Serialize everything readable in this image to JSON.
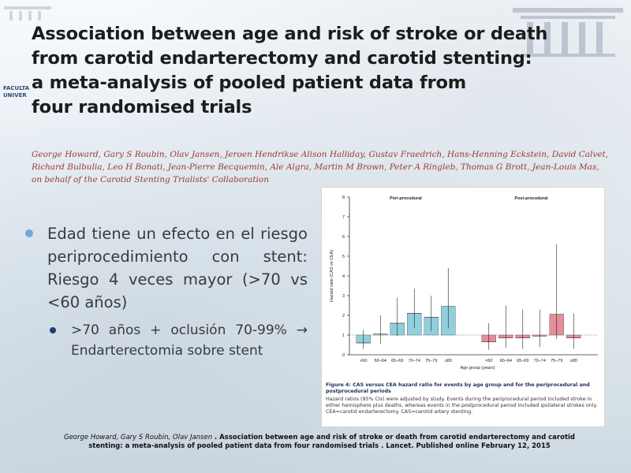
{
  "slide": {
    "faculty_label": [
      "FACULTA",
      "UNIVER"
    ],
    "title_lines": [
      "Association between age and risk of stroke or death",
      "from carotid endarterectomy and carotid stenting:",
      "a meta-analysis of pooled patient data from",
      "four randomised trials"
    ],
    "author_lines": [
      "George Howard, Gary S Roubin, Olav Jansen, Jeroen Hendrikse Alison Halliday, Gustav Fraedrich, Hans-Henning Eckstein, David Calvet,",
      "Richard Bulbulia, Leo H Bonati, Jean-Pierre Becquemin, Ale Algra, Martin M Brown, Peter A Ringleb, Thomas G Brott, Jean-Louis Mas,",
      "on behalf of the Carotid Stenting Trialists' Collaboration"
    ],
    "bullet_main": "Edad tiene un efecto en el riesgo periprocedimiento con stent: Riesgo 4 veces mayor (>70 vs <60 años)",
    "bullet_sub": ">70 años + oclusión 70-99% → Endarterectomia sobre stent",
    "footer_authors": "George Howard, Gary S Roubin, Olav Jansen",
    "footer_title": ". Association between age and risk of stroke or death from carotid endarterectomy and carotid stenting: a meta-analysis of pooled patient data from four randomised trials . Lancet. Published online February 12, 2015",
    "caption_title": "Figure 4: CAS versus CEA hazard ratio for events by age group and for the periprocedural and postprocedural periods",
    "caption_body": "Hazard ratios (95% CIs) were adjusted by study. Events during the periprocedural period included stroke in either hemisphere plus deaths, whereas events in the postprocedural period included ipsilateral strokes only. CEA=carotid endarterectomy. CAS=carotid artery stenting."
  },
  "colors": {
    "peri": "#8fd0dc",
    "post": "#e48e98",
    "title": "#1c1c1c",
    "authors": "#9b3a32"
  },
  "chart_data": {
    "type": "bar",
    "ylabel": "Hazard ratio (CAS vs CEA)",
    "xlabel": "Age group (years)",
    "ylim": [
      0,
      8
    ],
    "yticks": [
      0,
      1,
      2,
      3,
      4,
      5,
      6,
      7,
      8
    ],
    "reference_line": 1,
    "categories": [
      "<60",
      "60–64",
      "65–69",
      "70–74",
      "75–79",
      "≥80"
    ],
    "series": [
      {
        "name": "Peri-procedural",
        "values": [
          0.6,
          1.05,
          1.6,
          2.1,
          1.9,
          2.45
        ],
        "ci_low": [
          0.3,
          0.55,
          0.95,
          1.35,
          1.2,
          1.35
        ],
        "ci_high": [
          1.25,
          2.0,
          2.9,
          3.35,
          3.0,
          4.4
        ]
      },
      {
        "name": "Post-procedural",
        "values": [
          0.65,
          0.85,
          0.85,
          0.95,
          2.05,
          0.85
        ],
        "ci_low": [
          0.25,
          0.35,
          0.3,
          0.4,
          0.8,
          0.3
        ],
        "ci_high": [
          1.6,
          2.5,
          2.3,
          2.3,
          5.6,
          2.1
        ]
      }
    ]
  }
}
